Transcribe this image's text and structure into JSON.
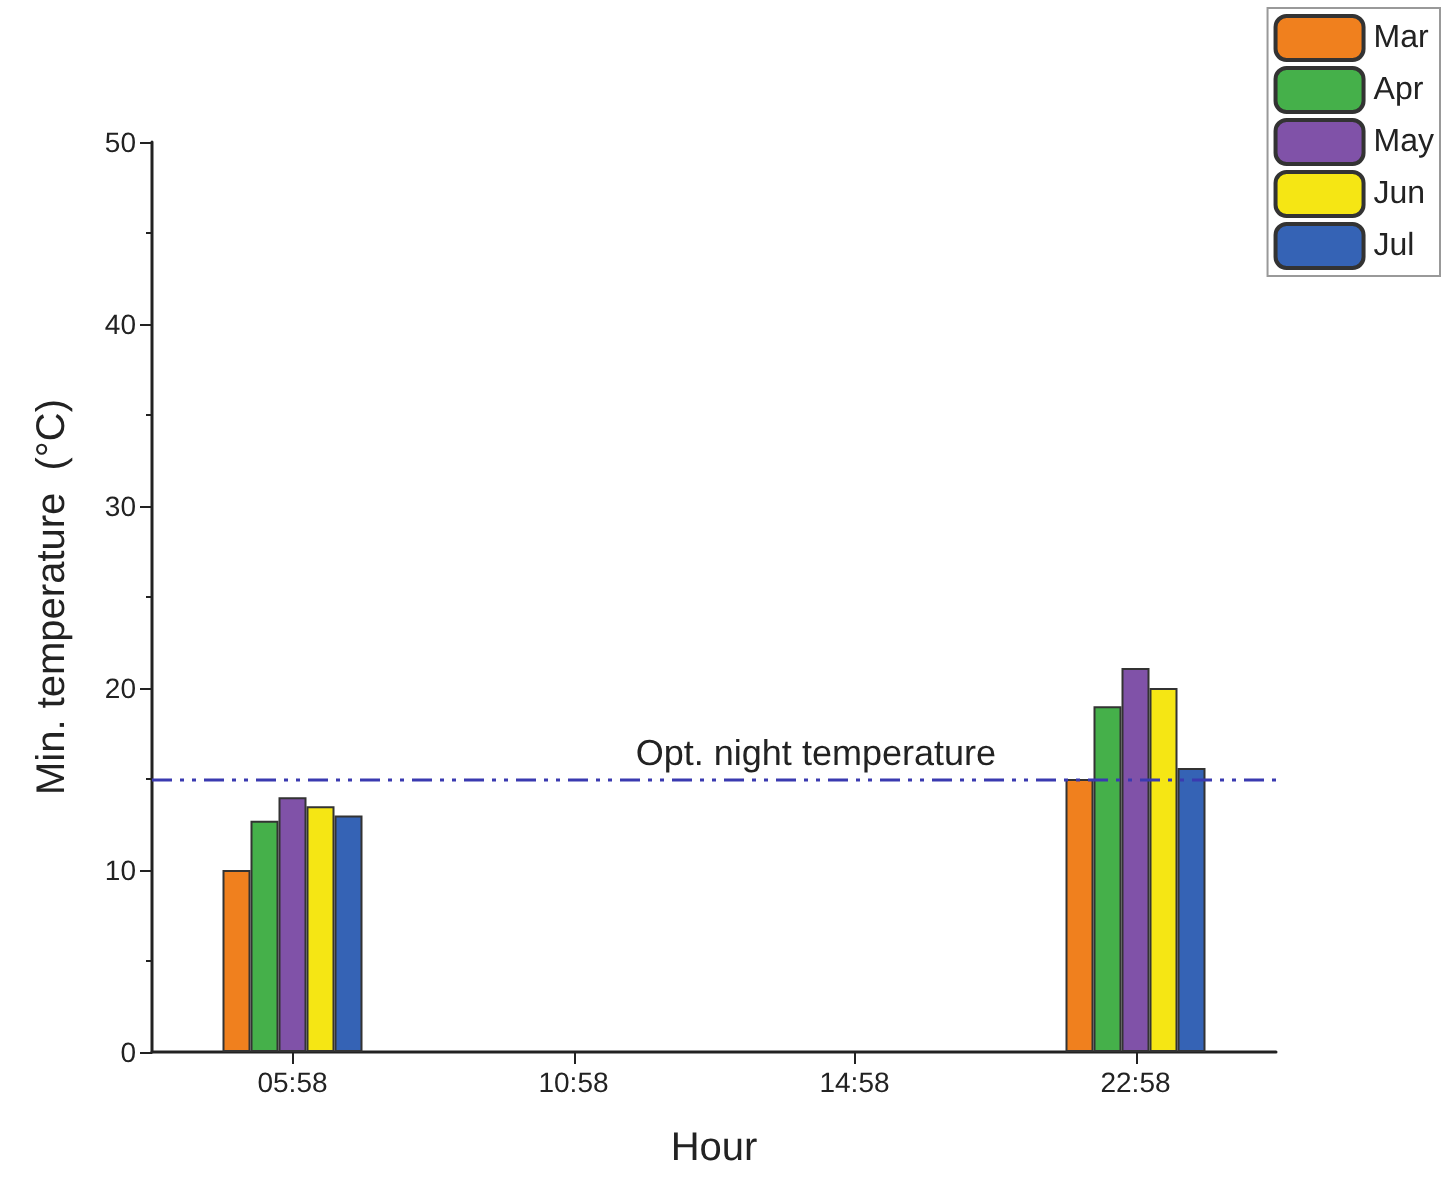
{
  "chart_data": {
    "type": "bar",
    "xlabel": "Hour",
    "ylabel": "Min. temperature  (°C)",
    "categories": [
      "05:58",
      "10:58",
      "14:58",
      "22:58"
    ],
    "series": [
      {
        "name": "Mar",
        "color": "#f0801e",
        "values": [
          10,
          null,
          null,
          15
        ]
      },
      {
        "name": "Apr",
        "color": "#45b04a",
        "values": [
          12.7,
          null,
          null,
          19
        ]
      },
      {
        "name": "May",
        "color": "#8052a8",
        "values": [
          14,
          null,
          null,
          21.1
        ]
      },
      {
        "name": "Jun",
        "color": "#f5e614",
        "values": [
          13.5,
          null,
          null,
          20
        ]
      },
      {
        "name": "Jul",
        "color": "#3563b5",
        "values": [
          13,
          null,
          null,
          15.6
        ]
      }
    ],
    "ylim": [
      0,
      50
    ],
    "yticks": [
      0,
      10,
      20,
      30,
      40,
      50
    ],
    "grid": false,
    "legend": "top right",
    "ref_lines": [
      {
        "axis": "y",
        "value": 15,
        "label": "Opt. night temperature",
        "color": "#3a3ab0",
        "line_style": "dashed"
      }
    ]
  }
}
